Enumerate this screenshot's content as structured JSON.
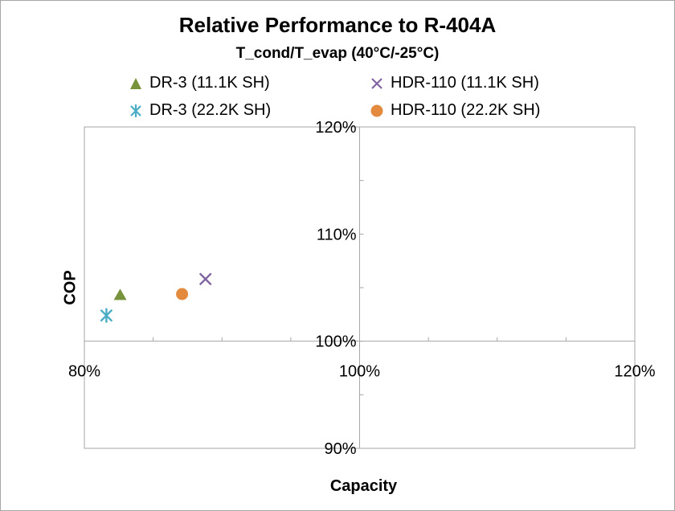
{
  "chart_data": {
    "type": "scatter",
    "title": "Relative Performance to R-404A",
    "subtitle": "T_cond/T_evap (40°C/-25°C)",
    "xlabel": "Capacity",
    "ylabel": "COP",
    "xlim": [
      0.8,
      1.2
    ],
    "ylim": [
      0.9,
      1.2
    ],
    "x_ticks": [
      "80%",
      "100%",
      "120%"
    ],
    "y_ticks": [
      "120%",
      "110%",
      "100%",
      "90%"
    ],
    "x_tick_values": [
      0.8,
      1.0,
      1.2
    ],
    "y_tick_values": [
      1.2,
      1.1,
      1.0,
      0.9
    ],
    "grid": false,
    "legend_position": "top",
    "series": [
      {
        "name": "DR-3 (11.1K SH)",
        "marker": "triangle",
        "color": "#77933c",
        "x": [
          0.826
        ],
        "y": [
          1.043
        ]
      },
      {
        "name": "HDR-110 (11.1K SH)",
        "marker": "x",
        "color": "#8064a2",
        "x": [
          0.888
        ],
        "y": [
          1.058
        ]
      },
      {
        "name": "DR-3 (22.2K SH)",
        "marker": "asterisk",
        "color": "#4bacc6",
        "x": [
          0.816
        ],
        "y": [
          1.024
        ]
      },
      {
        "name": "HDR-110 (22.2K SH)",
        "marker": "circle",
        "color": "#e38a3f",
        "x": [
          0.871
        ],
        "y": [
          1.044
        ]
      }
    ]
  }
}
